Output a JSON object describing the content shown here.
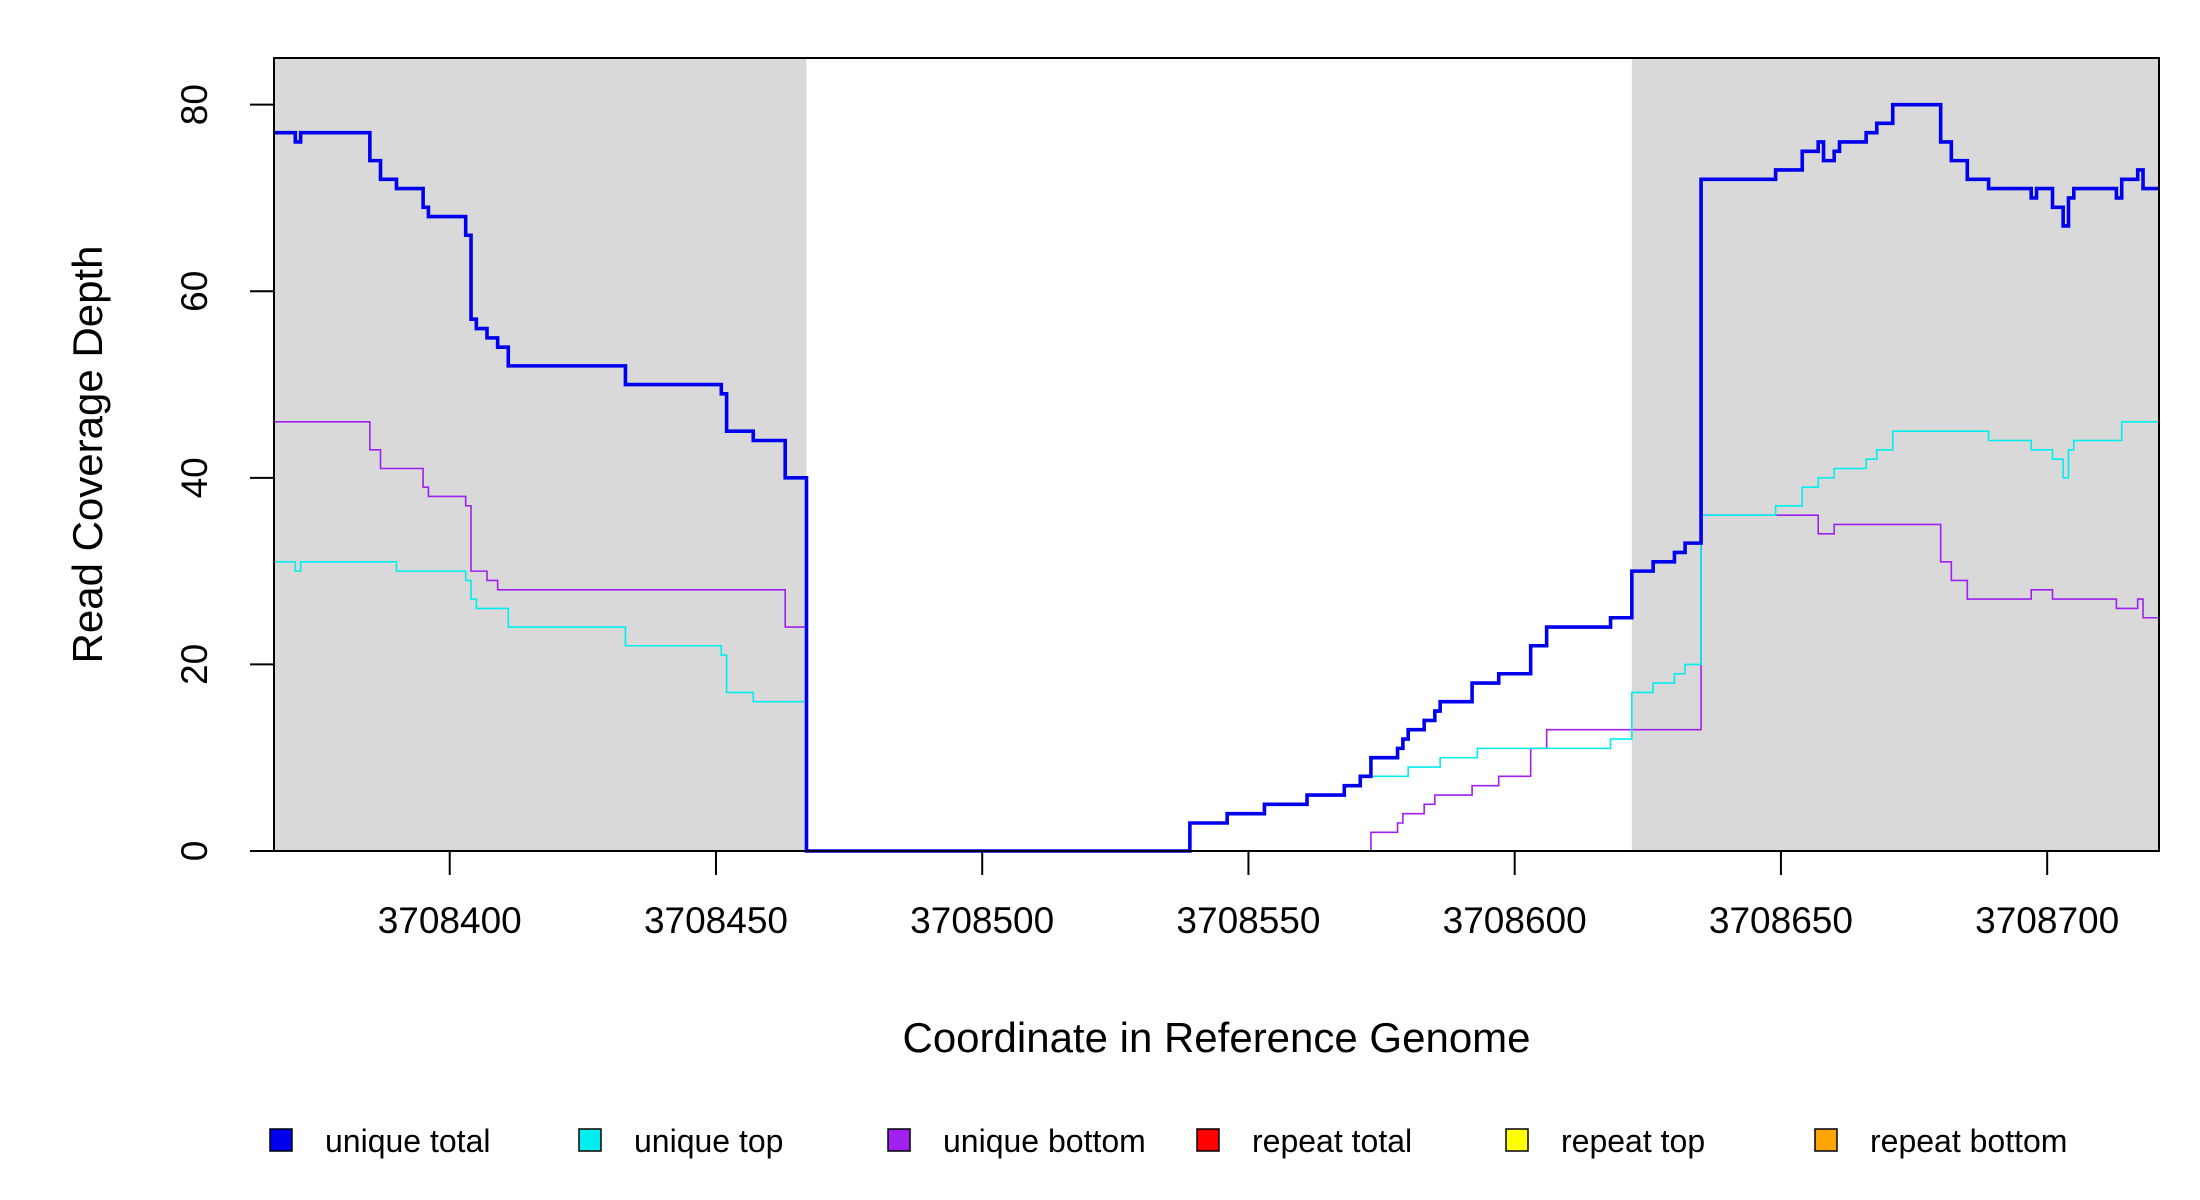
{
  "chart_data": {
    "type": "line",
    "step": true,
    "title": "",
    "xlabel": "Coordinate in Reference Genome",
    "ylabel": "Read Coverage Depth",
    "xlim": [
      3708367,
      3708721
    ],
    "ylim": [
      0,
      85
    ],
    "xticks": [
      3708400,
      3708450,
      3708500,
      3708550,
      3708600,
      3708650,
      3708700
    ],
    "yticks": [
      0,
      20,
      40,
      60,
      80
    ],
    "shaded_regions": [
      {
        "x0": 3708367,
        "x1": 3708467,
        "color": "#d9d9d9"
      },
      {
        "x0": 3708622,
        "x1": 3708721,
        "color": "#d9d9d9"
      }
    ],
    "legend_position": "bottom",
    "series": [
      {
        "name": "unique total",
        "color": "#0000ee",
        "width": 3.6,
        "points": [
          [
            3708367,
            77
          ],
          [
            3708371,
            76
          ],
          [
            3708372,
            77
          ],
          [
            3708385,
            74
          ],
          [
            3708387,
            72
          ],
          [
            3708390,
            71
          ],
          [
            3708395,
            69
          ],
          [
            3708396,
            68
          ],
          [
            3708403,
            66
          ],
          [
            3708404,
            57
          ],
          [
            3708405,
            56
          ],
          [
            3708407,
            55
          ],
          [
            3708409,
            54
          ],
          [
            3708411,
            52
          ],
          [
            3708433,
            50
          ],
          [
            3708451,
            49
          ],
          [
            3708452,
            45
          ],
          [
            3708457,
            44
          ],
          [
            3708463,
            40
          ],
          [
            3708467,
            0
          ],
          [
            3708539,
            3
          ],
          [
            3708546,
            4
          ],
          [
            3708553,
            5
          ],
          [
            3708561,
            6
          ],
          [
            3708568,
            7
          ],
          [
            3708571,
            8
          ],
          [
            3708573,
            10
          ],
          [
            3708578,
            11
          ],
          [
            3708579,
            12
          ],
          [
            3708580,
            13
          ],
          [
            3708583,
            14
          ],
          [
            3708585,
            15
          ],
          [
            3708586,
            16
          ],
          [
            3708592,
            18
          ],
          [
            3708597,
            19
          ],
          [
            3708603,
            22
          ],
          [
            3708606,
            24
          ],
          [
            3708618,
            25
          ],
          [
            3708622,
            30
          ],
          [
            3708626,
            31
          ],
          [
            3708630,
            32
          ],
          [
            3708632,
            33
          ],
          [
            3708635,
            72
          ],
          [
            3708649,
            73
          ],
          [
            3708654,
            75
          ],
          [
            3708657,
            76
          ],
          [
            3708658,
            74
          ],
          [
            3708660,
            75
          ],
          [
            3708661,
            76
          ],
          [
            3708666,
            77
          ],
          [
            3708668,
            78
          ],
          [
            3708671,
            80
          ],
          [
            3708680,
            76
          ],
          [
            3708682,
            74
          ],
          [
            3708685,
            72
          ],
          [
            3708689,
            71
          ],
          [
            3708697,
            70
          ],
          [
            3708698,
            71
          ],
          [
            3708701,
            69
          ],
          [
            3708703,
            67
          ],
          [
            3708704,
            70
          ],
          [
            3708705,
            71
          ],
          [
            3708713,
            70
          ],
          [
            3708714,
            72
          ],
          [
            3708717,
            73
          ],
          [
            3708718,
            71
          ],
          [
            3708721,
            71
          ]
        ]
      },
      {
        "name": "unique top",
        "color": "#00eeee",
        "width": 1.6,
        "points": [
          [
            3708367,
            31
          ],
          [
            3708371,
            30
          ],
          [
            3708372,
            31
          ],
          [
            3708390,
            30
          ],
          [
            3708403,
            29
          ],
          [
            3708404,
            27
          ],
          [
            3708405,
            26
          ],
          [
            3708411,
            24
          ],
          [
            3708433,
            22
          ],
          [
            3708451,
            21
          ],
          [
            3708452,
            17
          ],
          [
            3708457,
            16
          ],
          [
            3708467,
            0
          ],
          [
            3708539,
            3
          ],
          [
            3708546,
            4
          ],
          [
            3708553,
            5
          ],
          [
            3708561,
            6
          ],
          [
            3708568,
            7
          ],
          [
            3708571,
            8
          ],
          [
            3708580,
            9
          ],
          [
            3708586,
            10
          ],
          [
            3708593,
            11
          ],
          [
            3708606,
            11
          ],
          [
            3708618,
            12
          ],
          [
            3708622,
            17
          ],
          [
            3708626,
            18
          ],
          [
            3708630,
            19
          ],
          [
            3708632,
            20
          ],
          [
            3708635,
            36
          ],
          [
            3708649,
            37
          ],
          [
            3708654,
            39
          ],
          [
            3708657,
            40
          ],
          [
            3708660,
            41
          ],
          [
            3708666,
            42
          ],
          [
            3708668,
            43
          ],
          [
            3708671,
            45
          ],
          [
            3708689,
            44
          ],
          [
            3708697,
            43
          ],
          [
            3708701,
            42
          ],
          [
            3708703,
            40
          ],
          [
            3708704,
            43
          ],
          [
            3708705,
            44
          ],
          [
            3708714,
            46
          ],
          [
            3708721,
            46
          ]
        ]
      },
      {
        "name": "unique bottom",
        "color": "#a020f0",
        "width": 1.6,
        "points": [
          [
            3708367,
            46
          ],
          [
            3708385,
            43
          ],
          [
            3708387,
            41
          ],
          [
            3708395,
            39
          ],
          [
            3708396,
            38
          ],
          [
            3708403,
            37
          ],
          [
            3708404,
            30
          ],
          [
            3708407,
            29
          ],
          [
            3708409,
            28
          ],
          [
            3708433,
            28
          ],
          [
            3708463,
            24
          ],
          [
            3708467,
            0
          ],
          [
            3708573,
            2
          ],
          [
            3708578,
            3
          ],
          [
            3708579,
            4
          ],
          [
            3708583,
            5
          ],
          [
            3708585,
            6
          ],
          [
            3708592,
            7
          ],
          [
            3708597,
            8
          ],
          [
            3708603,
            11
          ],
          [
            3708606,
            13
          ],
          [
            3708635,
            36
          ],
          [
            3708657,
            34
          ],
          [
            3708660,
            35
          ],
          [
            3708680,
            31
          ],
          [
            3708682,
            29
          ],
          [
            3708685,
            27
          ],
          [
            3708697,
            28
          ],
          [
            3708701,
            27
          ],
          [
            3708713,
            26
          ],
          [
            3708717,
            27
          ],
          [
            3708718,
            25
          ],
          [
            3708721,
            25
          ]
        ]
      },
      {
        "name": "repeat total",
        "color": "#ff0000",
        "width": 2,
        "points": [
          [
            3708367,
            0
          ],
          [
            3708721,
            0
          ]
        ]
      },
      {
        "name": "repeat top",
        "color": "#ffff00",
        "width": 2,
        "points": [
          [
            3708367,
            0
          ],
          [
            3708721,
            0
          ]
        ]
      },
      {
        "name": "repeat bottom",
        "color": "#ffa500",
        "width": 2,
        "points": [
          [
            3708367,
            0
          ],
          [
            3708721,
            0
          ]
        ]
      }
    ]
  }
}
